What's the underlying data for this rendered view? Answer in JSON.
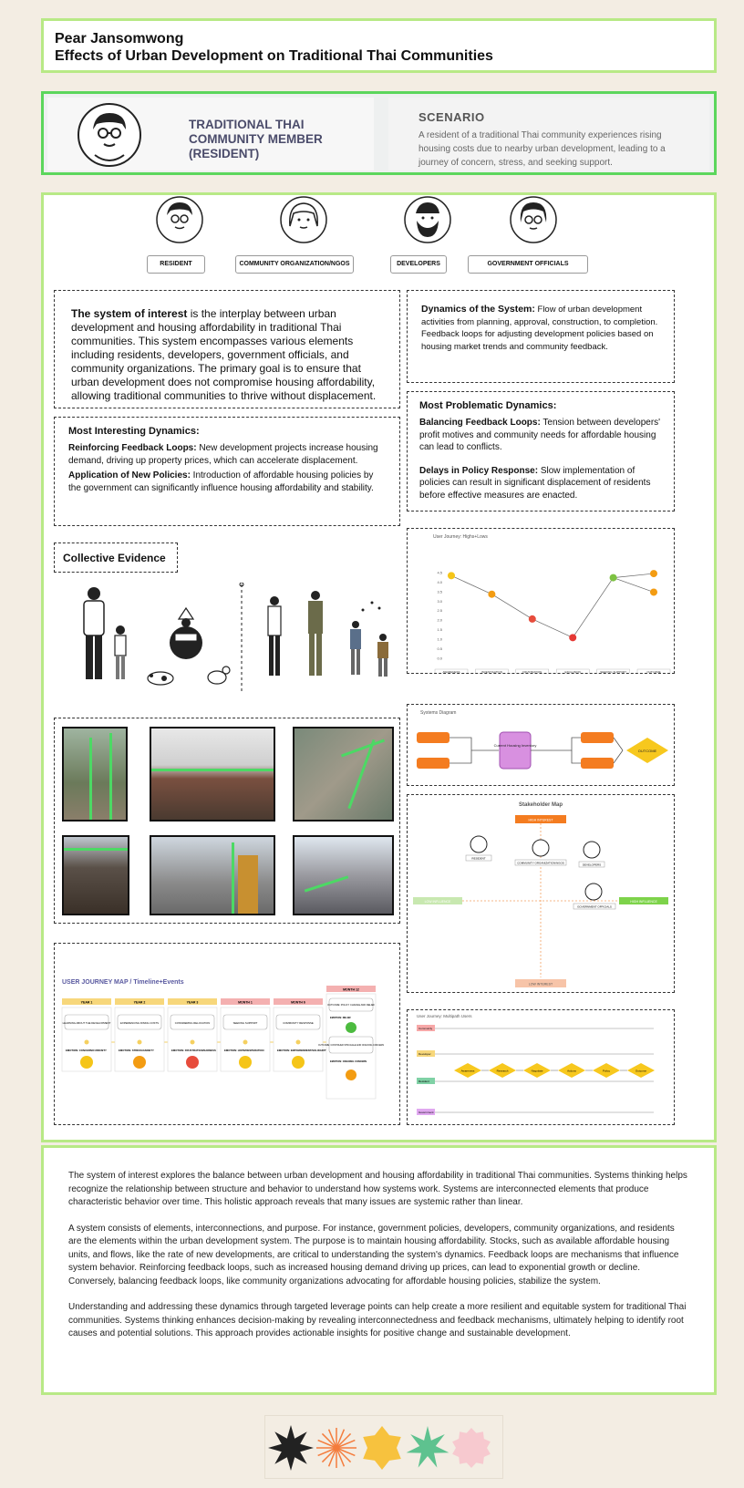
{
  "header": {
    "author": "Pear Jansomwong",
    "title": "Effects of Urban Development on Traditional Thai Communities"
  },
  "persona": {
    "name": "TRADITIONAL THAI COMMUNITY MEMBER (RESIDENT)",
    "scenario_title": "SCENARIO",
    "scenario_text": "A resident of a traditional Thai community experiences rising housing costs due to nearby urban development, leading to a journey of concern, stress, and seeking support."
  },
  "stakeholders": [
    "RESIDENT",
    "COMMUNITY ORGANIZATION/NGOS",
    "DEVELOPERS",
    "GOVERNMENT OFFICIALS"
  ],
  "system_of_interest": {
    "lead": "The system of interest",
    "text": " is the interplay between urban development and housing affordability in traditional Thai communities. This system encompasses various elements including residents, developers, government officials, and community organizations. The primary goal is to ensure that urban development does not compromise housing affordability, allowing traditional communities to thrive without displacement."
  },
  "dynamics": {
    "lead": "Dynamics of the System:",
    "text": " Flow of urban development activities from planning, approval, construction, to completion. Feedback loops for adjusting development policies based on housing market trends and community feedback."
  },
  "interesting": {
    "title": "Most Interesting Dynamics:",
    "item1_lead": "Reinforcing Feedback Loops:",
    "item1_text": " New development projects increase housing demand, driving up property prices, which can accelerate displacement.",
    "item2_lead": "Application of New Policies:",
    "item2_text": " Introduction of affordable housing policies by the government can significantly influence housing affordability and stability."
  },
  "problematic": {
    "title": "Most Problematic Dynamics:",
    "item1_lead": "Balancing Feedback Loops:",
    "item1_text": " Tension between developers' profit motives and community needs for affordable housing can lead to conflicts.",
    "item2_lead": "Delays in Policy Response:",
    "item2_text": " Slow implementation of policies can result in significant displacement of residents before effective measures are enacted."
  },
  "collective_evidence": "Collective Evidence",
  "emotion_chart": {
    "title": "User Journey: Highs+Lows",
    "categories": [
      "AWARENESS",
      "INVESTIGATION",
      "FRUSTRATION",
      "EXCLUSION",
      "SEEKING SUPPORT",
      "OUTCOME"
    ],
    "values": [
      4,
      3.1,
      1.9,
      1.0,
      3.9,
      4.1
    ],
    "alt_end": 3.2,
    "ylim": [
      0,
      4.5
    ],
    "yticks": [
      "4.5",
      "4.0",
      "3.5",
      "3.0",
      "2.5",
      "2.0",
      "1.5",
      "1.0",
      "0.5",
      "0.0"
    ],
    "colors": [
      "#f5c518",
      "#f39c12",
      "#e74c3c",
      "#e53935",
      "#7dc242",
      "#f39c12"
    ]
  },
  "systems_diagram": {
    "title": "Systems Diagram",
    "stock": "Current Housing Inventory",
    "outcome": "OUTCOME"
  },
  "stakeholder_map": {
    "title": "Stakeholder Map",
    "top": "HIGH INTEREST",
    "bottom": "LOW INTEREST",
    "left": "LOW INFLUENCE",
    "right": "HIGH INFLUENCE",
    "resident": "RESIDENT",
    "community": "COMMUNITY ORGANIZATION/NGOS",
    "developers": "DEVELOPERS",
    "government": "GOVERNMENT OFFICIALS"
  },
  "journey_map": {
    "title": "USER JOURNEY MAP / Timeline+Events",
    "years": [
      {
        "label": "YEAR 1",
        "event": "LEARNING ABOUT THE DEVELOPMENT",
        "emotion": "EMOTION: CONCERN/CURIOSITY",
        "face": "#f5c518"
      },
      {
        "label": "YEAR 2",
        "event": "EXPERIENCING RISING COSTS",
        "emotion": "EMOTION: STRESS/ANXIETY",
        "face": "#f39c12"
      },
      {
        "label": "YEAR 3",
        "event": "CONSIDERING RELOCATION",
        "emotion": "EMOTION: FRUSTRATION/SADNESS",
        "face": "#e74c3c"
      }
    ],
    "months": [
      {
        "label": "MONTH 1",
        "event": "SEEKING SUPPORT",
        "emotion": "EMOTION: HOPE/DESPERATION",
        "face": "#f5c518"
      },
      {
        "label": "MONTH 6",
        "event": "COMMUNITY RESPONSE",
        "emotion": "EMOTION: EMPOWERMENT/SOLIDARITY",
        "face": "#f5c518"
      }
    ],
    "month12": {
      "label": "MONTH 12",
      "outcome1": "OUTCOME: POLICY CHANGE AND RELIEF",
      "emotion1": "EMOTION: RELIEF",
      "outcome2": "OUTCOME: CONTINUED STRUGGLE AND ONGOING CONCERN",
      "emotion2": "EMOTION: ONGOING CONCERN"
    }
  },
  "multipath": {
    "title": "User Journey: Multipath Users",
    "lanes": [
      "Community",
      "Developer",
      "Resident",
      "Government"
    ],
    "lane_colors": [
      "#f7a8a8",
      "#f7d77b",
      "#7fd1a5",
      "#e0a8f0"
    ],
    "steps": [
      "Awareness",
      "Research",
      "Negotiate",
      "Actions",
      "Policy",
      "Outcome"
    ]
  },
  "summary": [
    "The system of interest explores the balance between urban development and housing affordability in traditional Thai communities. Systems thinking helps recognize the relationship between structure and behavior to understand how systems work. Systems are interconnected elements that produce characteristic behavior over time. This holistic approach reveals that many issues are systemic rather than linear.",
    "A system consists of elements, interconnections, and purpose. For instance, government policies, developers, community organizations, and residents are the elements within the urban development system. The purpose is to maintain housing affordability. Stocks, such as available affordable housing units, and flows, like the rate of new developments, are critical to understanding the system's dynamics. Feedback loops are mechanisms that influence system behavior. Reinforcing feedback loops, such as increased housing demand driving up prices, can lead to exponential growth or decline. Conversely, balancing feedback loops, like community organizations advocating for affordable housing policies, stabilize the system.",
    "Understanding and addressing these dynamics through targeted leverage points can help create a more resilient and equitable system for traditional Thai communities. Systems thinking enhances decision-making by revealing interconnectedness and feedback mechanisms, ultimately helping to identify root causes and potential solutions. This approach provides actionable insights for positive change and sustainable development."
  ],
  "footer_shapes": [
    "#222222",
    "#f47c3c",
    "#f7c23e",
    "#5ec28f",
    "#f7c9cf"
  ]
}
